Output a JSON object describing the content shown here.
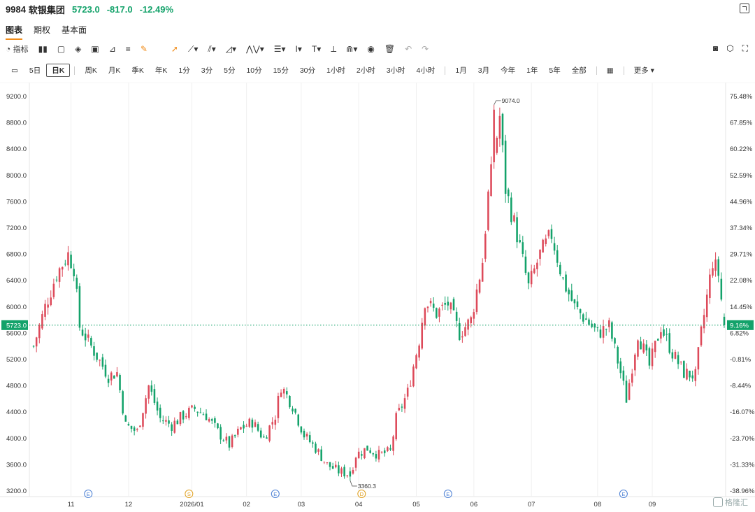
{
  "header": {
    "code": "9984",
    "name": "软银集团",
    "price": "5723.0",
    "change": "-817.0",
    "change_pct": "-12.49%"
  },
  "tabs": [
    {
      "label": "图表",
      "active": true
    },
    {
      "label": "期权",
      "active": false
    },
    {
      "label": "基本面",
      "active": false
    }
  ],
  "toolbar": {
    "indicator_label": "指标"
  },
  "periods": [
    "5日",
    "日K",
    "周K",
    "月K",
    "季K",
    "年K",
    "1分",
    "3分",
    "5分",
    "10分",
    "15分",
    "30分",
    "1小时",
    "2小时",
    "3小时",
    "4小时",
    "1月",
    "3月",
    "今年",
    "1年",
    "5年",
    "全部",
    "更多"
  ],
  "active_period": "日K",
  "watermark": "格隆汇",
  "colors": {
    "up": "#dd4a5a",
    "down": "#13a26a",
    "accent": "#f08c1a",
    "last_price_bg": "#13a26a"
  },
  "chart_data": {
    "type": "candlestick",
    "y_ticks": [
      "9200.0",
      "8800.0",
      "8400.0",
      "8000.0",
      "7600.0",
      "7200.0",
      "6800.0",
      "6400.0",
      "6000.0",
      "5600.0",
      "5200.0",
      "4800.0",
      "4400.0",
      "4000.0",
      "3600.0",
      "3200.0"
    ],
    "y_tick_values": [
      9200,
      8800,
      8400,
      8000,
      7600,
      7200,
      6800,
      6400,
      6000,
      5600,
      5200,
      4800,
      4400,
      4000,
      3600,
      3200
    ],
    "pct_ticks": [
      "75.48%",
      "67.85%",
      "60.22%",
      "52.59%",
      "44.96%",
      "37.34%",
      "29.71%",
      "22.08%",
      "14.45%",
      "6.82%",
      "-0.81%",
      "-8.44%",
      "-16.07%",
      "-23.70%",
      "-31.33%",
      "-38.96%"
    ],
    "x_labels": [
      "11",
      "12",
      "2026/01",
      "02",
      "03",
      "04",
      "05",
      "06",
      "07",
      "08",
      "09"
    ],
    "x_label_index": [
      13,
      33,
      55,
      74,
      93,
      113,
      133,
      153,
      173,
      196,
      215
    ],
    "last_price": {
      "value": 5723.0,
      "label": "5723.0",
      "pct_label": "9.16%"
    },
    "annotations": [
      {
        "label": "9074.0",
        "index": 160,
        "value": 9074.0
      },
      {
        "label": "3360.3",
        "index": 110,
        "value": 3360.3
      }
    ],
    "events": [
      {
        "label": "E",
        "index": 19,
        "color": "#4a7fd4"
      },
      {
        "label": "S",
        "index": 54,
        "color": "#e0a020"
      },
      {
        "label": "E",
        "index": 84,
        "color": "#4a7fd4"
      },
      {
        "label": "D",
        "index": 114,
        "color": "#e0a020"
      },
      {
        "label": "E",
        "index": 144,
        "color": "#4a7fd4"
      },
      {
        "label": "E",
        "index": 205,
        "color": "#4a7fd4"
      }
    ],
    "y_range": [
      3200,
      9200
    ],
    "candles": []
  }
}
